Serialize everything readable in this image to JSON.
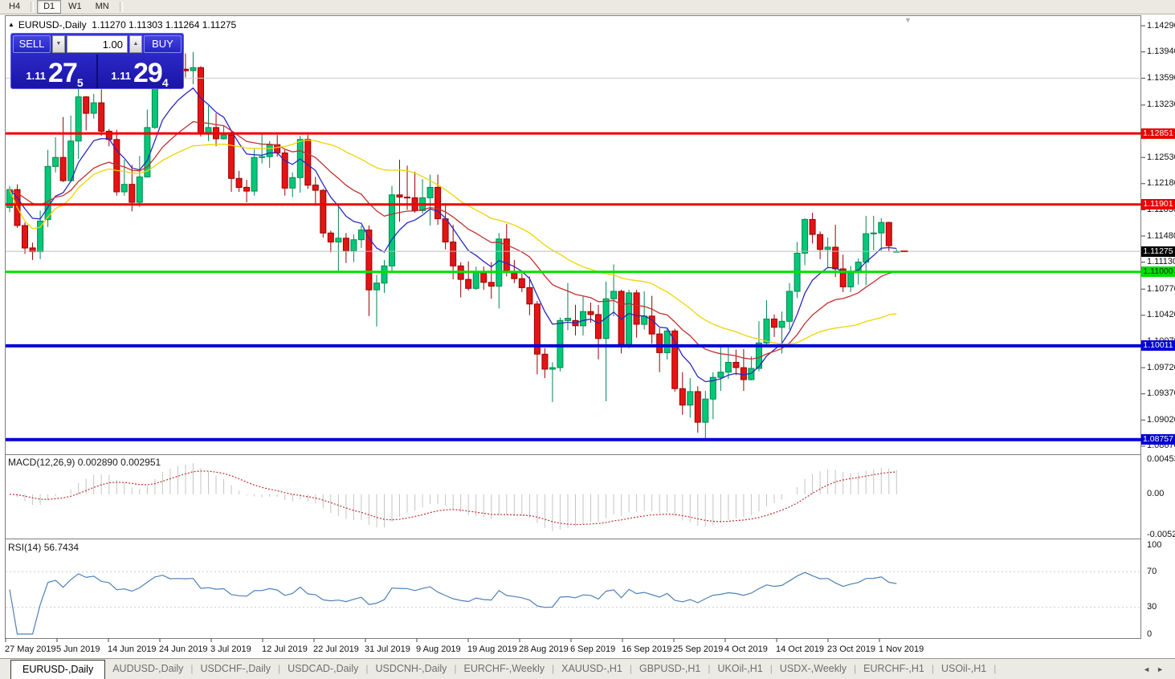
{
  "toolbar": {
    "buttons": [
      "H4",
      "D1",
      "W1",
      "MN"
    ],
    "active": "D1"
  },
  "chart": {
    "collapse_arrow": "▲",
    "symbol": "EURUSD-,Daily",
    "ohlc": "1.11270 1.11303 1.11264 1.11275"
  },
  "trade_panel": {
    "sell_label": "SELL",
    "buy_label": "BUY",
    "volume": "1.00",
    "spin_down": "▼",
    "spin_up": "▲",
    "sell_price": {
      "prefix": "1.11",
      "big": "27",
      "sup": "5"
    },
    "buy_price": {
      "prefix": "1.11",
      "big": "29",
      "sup": "4"
    }
  },
  "macd_panel": {
    "label": "MACD(12,26,9)",
    "value_main": "0.002890",
    "value_signal": "0.002951",
    "axis": [
      "0.004536",
      "0.00",
      "-0.005205"
    ]
  },
  "rsi_panel": {
    "label": "RSI(14)",
    "value": "56.7434",
    "axis": [
      "100",
      "70",
      "30",
      "0"
    ]
  },
  "price_axis": {
    "plain_ticks": [
      "1.14290",
      "1.13940",
      "1.13590",
      "1.13230",
      "1.12530",
      "1.12180",
      "1.11830",
      "1.11480",
      "1.11130",
      "1.10770",
      "1.10420",
      "1.10070",
      "1.09720",
      "1.09370",
      "1.09020",
      "1.08670"
    ],
    "tag_ticks": [
      {
        "value": "1.12851",
        "price": 1.12851,
        "bg": "#E80000",
        "fg": "#FFFFFF"
      },
      {
        "value": "1.11901",
        "price": 1.11901,
        "bg": "#E80000",
        "fg": "#FFFFFF"
      },
      {
        "value": "1.11275",
        "price": 1.11275,
        "bg": "#000000",
        "fg": "#FFFFFF"
      },
      {
        "value": "1.11000",
        "price": 1.11,
        "bg": "#00DC00",
        "fg": "#002B00"
      },
      {
        "value": "1.10011",
        "price": 1.10011,
        "bg": "#0000D2",
        "fg": "#FFFFFF"
      },
      {
        "value": "1.08757",
        "price": 1.08757,
        "bg": "#0000D2",
        "fg": "#FFFFFF"
      }
    ]
  },
  "date_axis": {
    "labels": [
      "27 May 2019",
      "5 Jun 2019",
      "14 Jun 2019",
      "24 Jun 2019",
      "3 Jul 2019",
      "12 Jul 2019",
      "22 Jul 2019",
      "31 Jul 2019",
      "9 Aug 2019",
      "19 Aug 2019",
      "28 Aug 2019",
      "6 Sep 2019",
      "16 Sep 2019",
      "25 Sep 2019",
      "4 Oct 2019",
      "14 Oct 2019",
      "23 Oct 2019",
      "1 Nov 2019"
    ]
  },
  "tabs": {
    "items": [
      "EURUSD-,Daily",
      "AUDUSD-,Daily",
      "USDCHF-,Daily",
      "USDCAD-,Daily",
      "USDCNH-,Daily",
      "EURCHF-,Weekly",
      "XAUUSD-,H1",
      "GBPUSD-,H1",
      "UKOil-,H1",
      "USDX-,Weekly",
      "EURCHF-,H1",
      "USOil-,H1"
    ],
    "active_index": 0,
    "scroll_left": "◄",
    "scroll_right": "►"
  },
  "colors": {
    "candle_up": "#00C878",
    "candle_up_border": "#008850",
    "candle_down": "#E41414",
    "candle_down_border": "#980000",
    "ma_fast": "#2929C0",
    "ma_mid": "#C23030",
    "ma_slow": "#EFD400",
    "res_line": "#F00000",
    "sup_green": "#00E000",
    "sup_blue": "#0000D8",
    "bid_line": "#BBBBBB",
    "silver_line": "#CCCCCC",
    "macd_hist": "#C4C4C4",
    "macd_signal": "#BF3030",
    "rsi_line": "#4E81B8",
    "rsi_level": "#C9C9C9",
    "panel_frame": "#7D7D7D"
  },
  "chart_data": {
    "type": "candlestick",
    "title": "EURUSD-,Daily",
    "symbol": "EURUSD",
    "timeframe": "Daily",
    "current_bar": {
      "open": 1.1127,
      "high": 1.11303,
      "low": 1.11264,
      "close": 1.11275
    },
    "price_scale": {
      "top_price": 1.1442,
      "bottom_price": 1.08562
    },
    "x_range": [
      "27 May 2019",
      "5 Nov 2019"
    ],
    "candles": [
      [
        1.1186,
        1.1215,
        1.118,
        1.121
      ],
      [
        1.121,
        1.1217,
        1.1159,
        1.1162
      ],
      [
        1.1162,
        1.1166,
        1.1124,
        1.1132
      ],
      [
        1.1132,
        1.1139,
        1.1116,
        1.1127
      ],
      [
        1.1127,
        1.1182,
        1.1117,
        1.1168
      ],
      [
        1.117,
        1.1263,
        1.116,
        1.1241
      ],
      [
        1.1241,
        1.128,
        1.1233,
        1.1253
      ],
      [
        1.1253,
        1.1307,
        1.122,
        1.1222
      ],
      [
        1.1222,
        1.1309,
        1.122,
        1.1275
      ],
      [
        1.1275,
        1.1348,
        1.1251,
        1.1334
      ],
      [
        1.1334,
        1.1335,
        1.1289,
        1.1312
      ],
      [
        1.1312,
        1.1338,
        1.1305,
        1.1326
      ],
      [
        1.1326,
        1.1344,
        1.1282,
        1.1288
      ],
      [
        1.1288,
        1.1291,
        1.1268,
        1.1277
      ],
      [
        1.1277,
        1.129,
        1.1202,
        1.1207
      ],
      [
        1.1207,
        1.125,
        1.1202,
        1.1217
      ],
      [
        1.1217,
        1.1243,
        1.1181,
        1.1193
      ],
      [
        1.1193,
        1.1255,
        1.1187,
        1.1227
      ],
      [
        1.1227,
        1.1317,
        1.1226,
        1.1293
      ],
      [
        1.1293,
        1.1378,
        1.1291,
        1.1369
      ],
      [
        1.1369,
        1.1406,
        1.1367,
        1.1399
      ],
      [
        1.1399,
        1.1412,
        1.1344,
        1.1367
      ],
      [
        1.1367,
        1.1391,
        1.1348,
        1.1371
      ],
      [
        1.1371,
        1.1392,
        1.136,
        1.1369
      ],
      [
        1.1369,
        1.1394,
        1.1351,
        1.1373
      ],
      [
        1.1373,
        1.1375,
        1.1281,
        1.1285
      ],
      [
        1.1285,
        1.1322,
        1.1275,
        1.1293
      ],
      [
        1.1293,
        1.1312,
        1.1268,
        1.1278
      ],
      [
        1.1278,
        1.1295,
        1.1277,
        1.1283
      ],
      [
        1.1283,
        1.1288,
        1.1207,
        1.1225
      ],
      [
        1.1225,
        1.1235,
        1.1207,
        1.1213
      ],
      [
        1.1213,
        1.1223,
        1.1193,
        1.1208
      ],
      [
        1.1208,
        1.1264,
        1.1202,
        1.1253
      ],
      [
        1.1253,
        1.1285,
        1.1245,
        1.1254
      ],
      [
        1.1254,
        1.1275,
        1.1239,
        1.127
      ],
      [
        1.127,
        1.1283,
        1.1254,
        1.1259
      ],
      [
        1.1259,
        1.1263,
        1.1202,
        1.1212
      ],
      [
        1.1212,
        1.1233,
        1.12,
        1.1226
      ],
      [
        1.1226,
        1.1282,
        1.1206,
        1.1277
      ],
      [
        1.1277,
        1.1283,
        1.1211,
        1.1216
      ],
      [
        1.1216,
        1.1227,
        1.1189,
        1.1209
      ],
      [
        1.1209,
        1.1211,
        1.1146,
        1.1152
      ],
      [
        1.1152,
        1.1155,
        1.1126,
        1.114
      ],
      [
        1.114,
        1.1187,
        1.1101,
        1.1145
      ],
      [
        1.1145,
        1.1152,
        1.1112,
        1.1128
      ],
      [
        1.1128,
        1.115,
        1.1113,
        1.1143
      ],
      [
        1.1143,
        1.1162,
        1.1132,
        1.1156
      ],
      [
        1.1156,
        1.1162,
        1.1041,
        1.1076
      ],
      [
        1.1076,
        1.1096,
        1.1027,
        1.1085
      ],
      [
        1.1085,
        1.1116,
        1.1072,
        1.1108
      ],
      [
        1.1108,
        1.1215,
        1.1101,
        1.1203
      ],
      [
        1.1203,
        1.125,
        1.1167,
        1.12
      ],
      [
        1.12,
        1.1242,
        1.1183,
        1.1199
      ],
      [
        1.1199,
        1.1234,
        1.1179,
        1.1182
      ],
      [
        1.1182,
        1.1224,
        1.1178,
        1.1199
      ],
      [
        1.1199,
        1.123,
        1.1162,
        1.1213
      ],
      [
        1.1213,
        1.123,
        1.1163,
        1.1171
      ],
      [
        1.1171,
        1.1192,
        1.113,
        1.114
      ],
      [
        1.114,
        1.1163,
        1.109,
        1.1108
      ],
      [
        1.1108,
        1.1113,
        1.1066,
        1.109
      ],
      [
        1.109,
        1.1114,
        1.1075,
        1.1078
      ],
      [
        1.1078,
        1.1107,
        1.1076,
        1.11
      ],
      [
        1.11,
        1.1107,
        1.1076,
        1.1086
      ],
      [
        1.1086,
        1.1113,
        1.1064,
        1.1081
      ],
      [
        1.1081,
        1.1152,
        1.1051,
        1.1144
      ],
      [
        1.1144,
        1.1164,
        1.1094,
        1.11
      ],
      [
        1.11,
        1.1116,
        1.1085,
        1.1091
      ],
      [
        1.1091,
        1.1098,
        1.1073,
        1.1079
      ],
      [
        1.1079,
        1.1094,
        1.1042,
        1.1057
      ],
      [
        1.1057,
        1.1061,
        1.0963,
        1.099
      ],
      [
        1.099,
        1.0998,
        1.0958,
        1.097
      ],
      [
        1.097,
        1.0979,
        1.0926,
        1.0972
      ],
      [
        1.0972,
        1.1039,
        1.0967,
        1.1035
      ],
      [
        1.1035,
        1.1085,
        1.1022,
        1.1038
      ],
      [
        1.1035,
        1.1056,
        1.1015,
        1.1028
      ],
      [
        1.1028,
        1.1067,
        1.1015,
        1.1047
      ],
      [
        1.1047,
        1.1059,
        1.1032,
        1.1043
      ],
      [
        1.1043,
        1.1056,
        1.0983,
        1.1011
      ],
      [
        1.1011,
        1.1087,
        1.0927,
        1.1064
      ],
      [
        1.1064,
        1.111,
        1.1041,
        1.1074
      ],
      [
        1.1074,
        1.1076,
        1.0991,
        1.1003
      ],
      [
        1.1003,
        1.1076,
        1.0998,
        1.1072
      ],
      [
        1.1072,
        1.1076,
        1.1012,
        1.103
      ],
      [
        1.103,
        1.1074,
        1.1023,
        1.1041
      ],
      [
        1.1041,
        1.1068,
        1.1004,
        1.1017
      ],
      [
        1.1017,
        1.1025,
        1.0966,
        1.0992
      ],
      [
        1.0992,
        1.1024,
        1.0983,
        1.1021
      ],
      [
        1.1021,
        1.1024,
        1.094,
        1.0944
      ],
      [
        1.0944,
        1.0966,
        1.0909,
        1.0922
      ],
      [
        1.0922,
        1.0958,
        1.0905,
        1.094
      ],
      [
        1.094,
        1.0947,
        1.0885,
        1.0899
      ],
      [
        1.0899,
        1.0941,
        1.0876,
        1.093
      ],
      [
        1.093,
        1.0966,
        1.0903,
        1.0959
      ],
      [
        1.0959,
        1.0999,
        1.0941,
        1.0966
      ],
      [
        1.0966,
        1.0999,
        1.0957,
        1.0979
      ],
      [
        1.0979,
        1.0996,
        1.0962,
        1.0972
      ],
      [
        1.0972,
        1.0997,
        1.0941,
        1.0956
      ],
      [
        1.0956,
        1.0987,
        1.0955,
        1.0971
      ],
      [
        1.0971,
        1.1034,
        1.0967,
        1.1005
      ],
      [
        1.1005,
        1.1062,
        1.1002,
        1.1037
      ],
      [
        1.1037,
        1.1043,
        1.1013,
        1.1026
      ],
      [
        1.1026,
        1.1047,
        1.0991,
        1.1034
      ],
      [
        1.1034,
        1.1085,
        1.1023,
        1.1074
      ],
      [
        1.1074,
        1.114,
        1.1065,
        1.1125
      ],
      [
        1.1125,
        1.1172,
        1.1109,
        1.117
      ],
      [
        1.117,
        1.1179,
        1.1138,
        1.115
      ],
      [
        1.115,
        1.1154,
        1.1117,
        1.113
      ],
      [
        1.113,
        1.1146,
        1.1106,
        1.1133
      ],
      [
        1.1133,
        1.1163,
        1.1093,
        1.1104
      ],
      [
        1.1104,
        1.1123,
        1.1073,
        1.108
      ],
      [
        1.108,
        1.1108,
        1.1073,
        1.1099
      ],
      [
        1.1099,
        1.1118,
        1.1083,
        1.1113
      ],
      [
        1.1113,
        1.1175,
        1.1082,
        1.1151
      ],
      [
        1.1151,
        1.1175,
        1.1129,
        1.1152
      ],
      [
        1.1152,
        1.1172,
        1.1128,
        1.1166
      ],
      [
        1.1166,
        1.1167,
        1.1128,
        1.1135
      ],
      [
        1.1127,
        1.11303,
        1.11264,
        1.11275
      ]
    ],
    "moving_averages": [
      {
        "period": 8,
        "method": "ema",
        "color": "#2929C0"
      },
      {
        "period": 20,
        "method": "ema",
        "color": "#C23030"
      },
      {
        "period": 35,
        "method": "sma",
        "color": "#EFD400"
      }
    ],
    "hlines": [
      {
        "price": 1.1359,
        "color": "#CCCCCC",
        "width": 1
      },
      {
        "price": 1.12851,
        "color": "#F00000",
        "width": 3
      },
      {
        "price": 1.11901,
        "color": "#F00000",
        "width": 3
      },
      {
        "price": 1.11,
        "color": "#00E000",
        "width": 3
      },
      {
        "price": 1.10011,
        "color": "#0000D8",
        "width": 4
      },
      {
        "price": 1.08757,
        "color": "#0000D8",
        "width": 4
      }
    ],
    "bid_line": {
      "price": 1.11275,
      "color": "#BBBBBB"
    },
    "macd": {
      "fast": 12,
      "slow": 26,
      "signal": 9,
      "scale_max": 0.004536,
      "scale_min": -0.005205,
      "current_main": 0.00289,
      "current_signal": 0.002951
    },
    "rsi": {
      "period": 14,
      "levels": [
        70,
        30
      ],
      "scale": [
        0,
        100
      ],
      "current": 56.7434
    }
  }
}
